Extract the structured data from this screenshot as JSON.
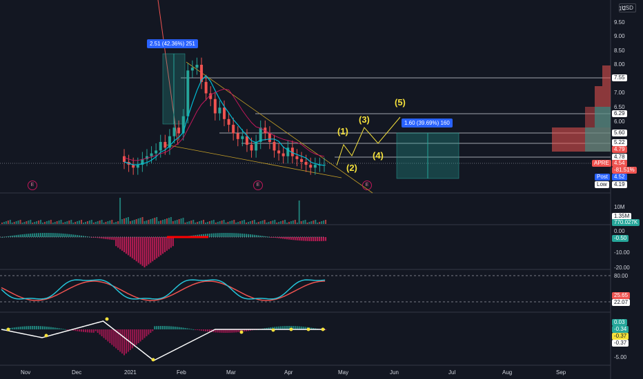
{
  "currency": "USD",
  "price_axis": {
    "ticks": [
      "10.00",
      "9.50",
      "9.00",
      "8.50",
      "8.00",
      "7.00",
      "6.50",
      "6.00",
      "5.00",
      "4.78",
      "4.19"
    ],
    "tick_top_label": "1C"
  },
  "price_levels": {
    "l755": "7.55",
    "l629": "6.29",
    "l560": "5.60",
    "l522": "5.22",
    "l479": "4.79",
    "l478": "4.78"
  },
  "symbol_tag": {
    "symbol": "APRE",
    "price": "4.54",
    "change": "-81.51%"
  },
  "post_tag": {
    "label": "Post",
    "price": "4.52"
  },
  "low_tag": {
    "label": "Low",
    "price": "4.19"
  },
  "measure_left": "2.51 (42.36%) 251",
  "measure_right": "1.60 (39.69%) 160",
  "waves": [
    "(1)",
    "(2)",
    "(3)",
    "(4)",
    "(5)"
  ],
  "earnings_label": "E",
  "volume_panel": {
    "ticks": [
      "10M",
      "1.35M",
      "770.027K"
    ]
  },
  "macd_panel": {
    "ticks": [
      "0.00",
      "-0.50",
      "-10.00",
      "-20.00"
    ]
  },
  "rsi_panel": {
    "ticks": [
      "80.00",
      "25.65",
      "22.07"
    ]
  },
  "osc_panel": {
    "ticks": [
      "0.03",
      "-0.34",
      "-0.37",
      "-0.37",
      "-5.00"
    ]
  },
  "time_axis": [
    "Nov",
    "Dec",
    "2021",
    "Feb",
    "Mar",
    "Apr",
    "May",
    "Jun",
    "Jul",
    "Aug",
    "Sep"
  ],
  "colors": {
    "bg": "#131722",
    "up": "#26a69a",
    "down": "#ef5350",
    "accent": "#2962ff",
    "yellow": "#f5e13c"
  },
  "chart_data": {
    "type": "candlestick",
    "symbol": "APRE",
    "last_price": 4.54,
    "change_pct": -81.51,
    "post_price": 4.52,
    "low": 4.19,
    "horizontal_levels": [
      7.55,
      6.29,
      5.6,
      5.22,
      4.79,
      4.78
    ],
    "closes": [
      4.6,
      4.5,
      4.4,
      4.5,
      4.7,
      4.8,
      4.9,
      5.0,
      5.3,
      5.1,
      5.5,
      5.8,
      5.6,
      6.2,
      7.8,
      7.9,
      8.0,
      7.4,
      7.0,
      6.8,
      6.3,
      6.5,
      6.1,
      5.9,
      5.6,
      5.4,
      5.5,
      5.2,
      5.0,
      5.3,
      5.8,
      5.6,
      5.3,
      5.0,
      4.9,
      4.8,
      5.1,
      4.8,
      4.7,
      4.6,
      4.5,
      4.4,
      4.5,
      4.5,
      4.5
    ],
    "measures": [
      {
        "label": "2.51 (42.36%) 251",
        "change": 2.51,
        "pct": 42.36
      },
      {
        "label": "1.60 (39.69%) 160",
        "change": 1.6,
        "pct": 39.69
      }
    ]
  }
}
